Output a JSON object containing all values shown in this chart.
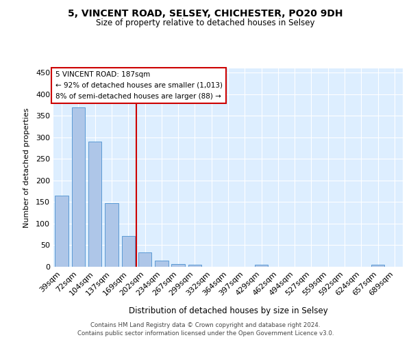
{
  "title": "5, VINCENT ROAD, SELSEY, CHICHESTER, PO20 9DH",
  "subtitle": "Size of property relative to detached houses in Selsey",
  "xlabel": "Distribution of detached houses by size in Selsey",
  "ylabel": "Number of detached properties",
  "footer_line1": "Contains HM Land Registry data © Crown copyright and database right 2024.",
  "footer_line2": "Contains public sector information licensed under the Open Government Licence v3.0.",
  "categories": [
    "39sqm",
    "72sqm",
    "104sqm",
    "137sqm",
    "169sqm",
    "202sqm",
    "234sqm",
    "267sqm",
    "299sqm",
    "332sqm",
    "364sqm",
    "397sqm",
    "429sqm",
    "462sqm",
    "494sqm",
    "527sqm",
    "559sqm",
    "592sqm",
    "624sqm",
    "657sqm",
    "689sqm"
  ],
  "values": [
    165,
    370,
    290,
    148,
    72,
    33,
    15,
    7,
    5,
    0,
    0,
    0,
    4,
    0,
    0,
    0,
    0,
    0,
    0,
    4,
    0
  ],
  "bar_color": "#aec6e8",
  "bar_edge_color": "#5b9bd5",
  "background_color": "#ddeeff",
  "marker_line_color": "#cc0000",
  "annotation_text_line1": "5 VINCENT ROAD: 187sqm",
  "annotation_text_line2": "← 92% of detached houses are smaller (1,013)",
  "annotation_text_line3": "8% of semi-detached houses are larger (88) →",
  "annotation_box_color": "#ffffff",
  "annotation_box_edge_color": "#cc0000",
  "ylim": [
    0,
    460
  ],
  "yticks": [
    0,
    50,
    100,
    150,
    200,
    250,
    300,
    350,
    400,
    450
  ]
}
